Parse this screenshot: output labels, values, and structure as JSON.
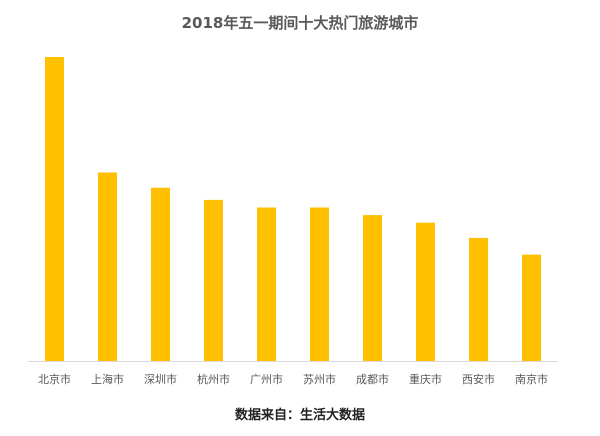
{
  "chart_data": {
    "type": "bar",
    "title": "2018年五一期间十大热门旅游城市",
    "categories": [
      "北京市",
      "上海市",
      "深圳市",
      "杭州市",
      "广州市",
      "苏州市",
      "成都市",
      "重庆市",
      "西安市",
      "南京市"
    ],
    "values": [
      100,
      62,
      57,
      53,
      50.5,
      50.5,
      48,
      45.5,
      40.5,
      35
    ],
    "ylim": [
      0,
      100
    ],
    "grid": false,
    "legend": "none",
    "bar_color": "#FFC000",
    "axis_color": "#D9D9D9"
  },
  "source_note": "数据来自：生活大数据"
}
